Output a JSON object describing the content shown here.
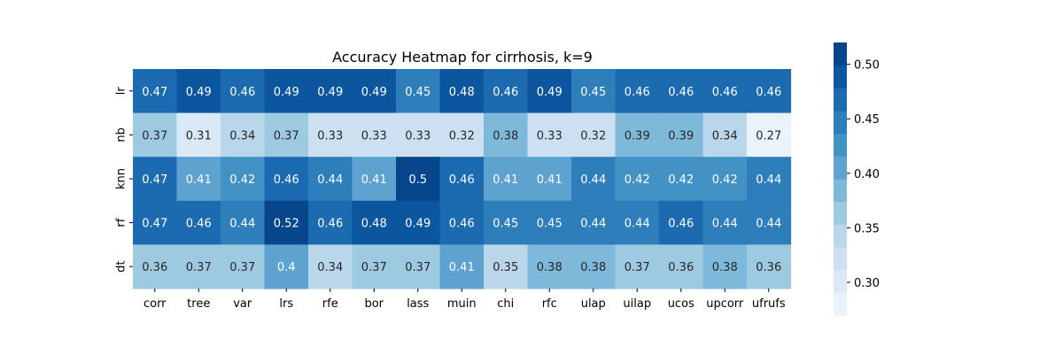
{
  "chart_data": {
    "type": "heatmap",
    "title": "Accuracy Heatmap for cirrhosis, k=9",
    "xlabel": "",
    "ylabel": "",
    "columns": [
      "corr",
      "tree",
      "var",
      "lrs",
      "rfe",
      "bor",
      "lass",
      "muin",
      "chi",
      "rfc",
      "ulap",
      "uilap",
      "ucos",
      "upcorr",
      "ufrufs"
    ],
    "rows": [
      "lr",
      "nb",
      "knn",
      "rf",
      "dt"
    ],
    "values": [
      [
        0.47,
        0.49,
        0.46,
        0.49,
        0.49,
        0.49,
        0.45,
        0.48,
        0.46,
        0.49,
        0.45,
        0.46,
        0.46,
        0.46,
        0.46
      ],
      [
        0.37,
        0.31,
        0.34,
        0.37,
        0.33,
        0.33,
        0.33,
        0.32,
        0.38,
        0.33,
        0.32,
        0.39,
        0.39,
        0.34,
        0.27
      ],
      [
        0.47,
        0.41,
        0.42,
        0.46,
        0.44,
        0.41,
        0.5,
        0.46,
        0.41,
        0.41,
        0.44,
        0.42,
        0.42,
        0.42,
        0.44
      ],
      [
        0.47,
        0.46,
        0.44,
        0.52,
        0.46,
        0.48,
        0.49,
        0.46,
        0.45,
        0.45,
        0.44,
        0.44,
        0.46,
        0.44,
        0.44
      ],
      [
        0.36,
        0.37,
        0.37,
        0.4,
        0.34,
        0.37,
        0.37,
        0.41,
        0.35,
        0.38,
        0.38,
        0.37,
        0.36,
        0.38,
        0.36
      ]
    ],
    "colorbar": {
      "range": [
        0.27,
        0.52
      ],
      "ticks": [
        "0.30",
        "0.35",
        "0.40",
        "0.45",
        "0.50"
      ],
      "tick_values": [
        0.3,
        0.35,
        0.4,
        0.45,
        0.5
      ],
      "placement": "right"
    },
    "colormap": [
      "#eaf2fb",
      "#dbe9f6",
      "#cde0f1",
      "#bad6eb",
      "#9ecae1",
      "#7fb9da",
      "#5ea3d0",
      "#4292c6",
      "#2f7ebc",
      "#1c6ab0",
      "#0c56a0",
      "#08468b"
    ],
    "grid": false
  }
}
